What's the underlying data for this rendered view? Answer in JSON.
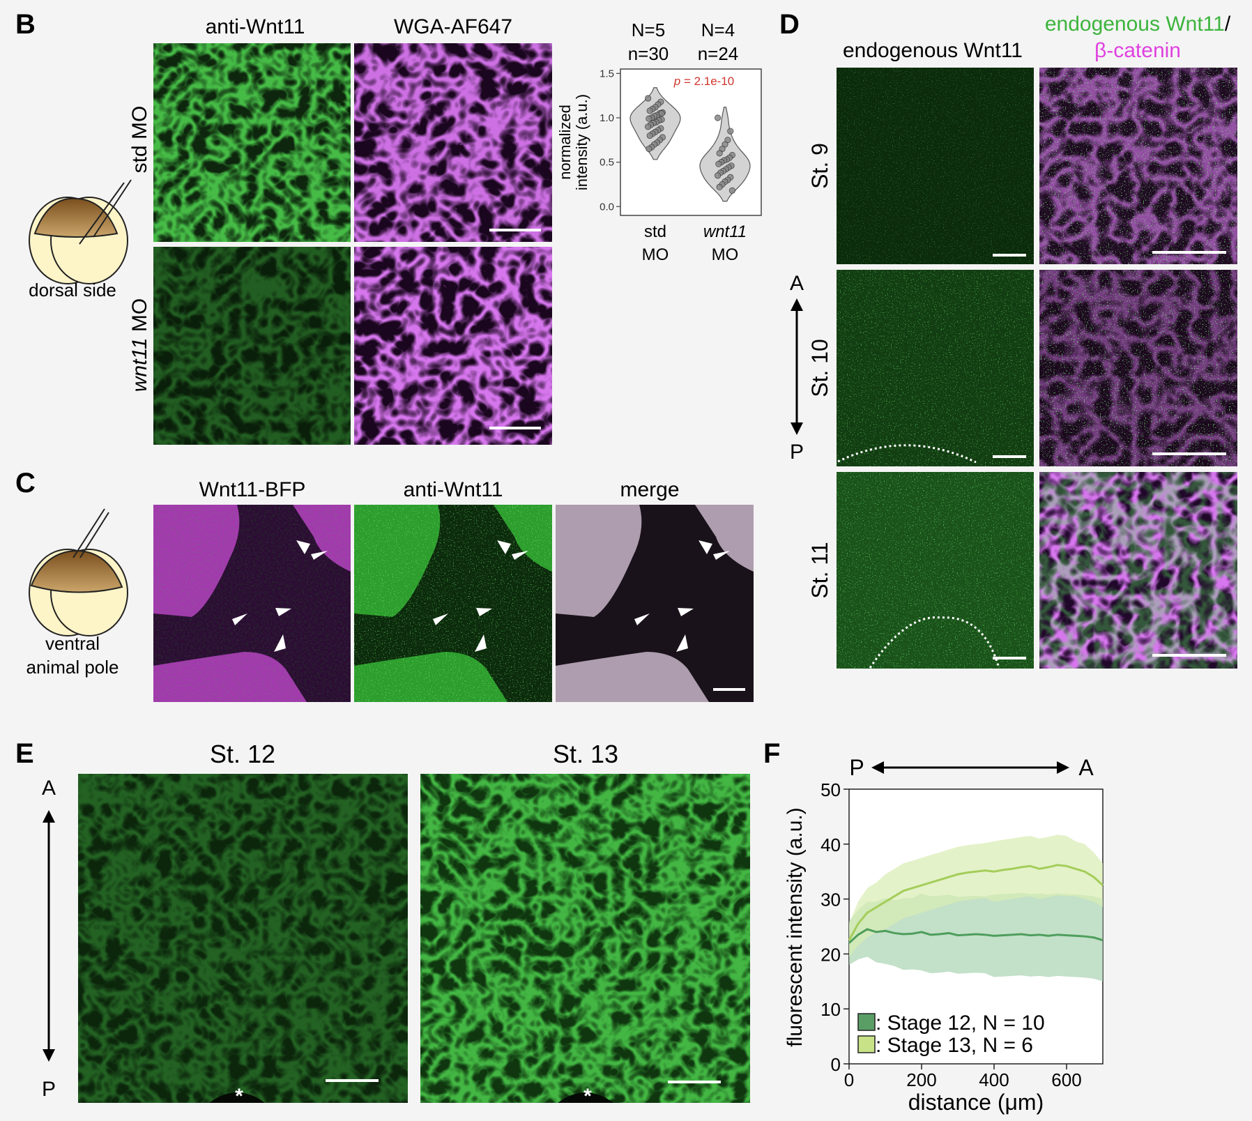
{
  "panels": {
    "B": {
      "letter": "B",
      "col_labels": [
        "anti-Wnt11",
        "WGA-AF647"
      ],
      "row_std": "std MO",
      "row_wnt11_italic": "wnt11",
      "row_wnt11_rest": " MO",
      "embryo_label": "dorsal side",
      "violin": {
        "groups": [
          {
            "N": "N=5",
            "n": "n=30",
            "label_line1": "std",
            "label_line2": "MO",
            "italic": false,
            "values": [
              1.22,
              1.18,
              1.15,
              1.12,
              1.1,
              1.08,
              1.06,
              1.05,
              1.03,
              1.02,
              1.0,
              0.99,
              0.98,
              0.97,
              0.95,
              0.94,
              0.92,
              0.9,
              0.88,
              0.86,
              0.84,
              0.82,
              0.8,
              0.78,
              0.75,
              0.72,
              0.7,
              0.67,
              0.65,
              1.05
            ]
          },
          {
            "N": "N=4",
            "n": "n=24",
            "label_line1": "wnt11",
            "label_line2": "MO",
            "italic": true,
            "values": [
              1.0,
              0.85,
              0.75,
              0.7,
              0.65,
              0.6,
              0.58,
              0.55,
              0.53,
              0.52,
              0.5,
              0.48,
              0.46,
              0.44,
              0.42,
              0.4,
              0.38,
              0.35,
              0.33,
              0.3,
              0.28,
              0.25,
              0.22,
              0.18
            ]
          }
        ],
        "ylabel_line1": "normalized",
        "ylabel_line2": "intensity (a.u.)",
        "yticks": [
          "0.0",
          "0.5",
          "1.0",
          "1.5"
        ],
        "ylim": [
          -0.1,
          1.55
        ],
        "p_label": "p",
        "p_value": " = 2.1e-10",
        "p_color": "#d0342c"
      }
    },
    "C": {
      "letter": "C",
      "col_labels": [
        "Wnt11-BFP",
        "anti-Wnt11",
        "merge"
      ],
      "embryo_line1": "ventral",
      "embryo_line2": "animal pole"
    },
    "D": {
      "letter": "D",
      "col1_label": "endogenous Wnt11",
      "col2_line1_green": "endogenous Wnt11",
      "col2_line1_slash": "/",
      "col2_line2": "β-catenin",
      "green": "#3cb43c",
      "magenta": "#e040e0",
      "rows": [
        "St. 9",
        "St. 10",
        "St. 11"
      ],
      "axis_top": "A",
      "axis_bottom": "P"
    },
    "E": {
      "letter": "E",
      "titles": [
        "St. 12",
        "St. 13"
      ],
      "axis_top": "A",
      "axis_bottom": "P",
      "asterisk": "*"
    },
    "F": {
      "letter": "F",
      "axis_left": "P",
      "axis_right": "A",
      "ylabel": "fluorescent intensity (a.u.)",
      "xlabel": "distance (μm)",
      "legend": [
        ": Stage 12, N = 10",
        ": Stage 13, N = 6"
      ]
    }
  },
  "chart_data": {
    "type": "line",
    "xlabel": "distance (μm)",
    "ylabel": "fluorescent intensity (a.u.)",
    "xlim": [
      0,
      700
    ],
    "ylim": [
      0,
      50
    ],
    "xticks": [
      0,
      200,
      400,
      600
    ],
    "yticks": [
      0,
      10,
      20,
      30,
      40,
      50
    ],
    "legend_position": "bottom-left",
    "x": [
      0,
      25,
      50,
      75,
      100,
      125,
      150,
      175,
      200,
      225,
      250,
      275,
      300,
      325,
      350,
      375,
      400,
      425,
      450,
      475,
      500,
      525,
      550,
      575,
      600,
      625,
      650,
      675,
      700
    ],
    "series": [
      {
        "name": "Stage 12, N = 10",
        "color": "#4e9e5c",
        "band_color": "#a9d3b2",
        "values": [
          22,
          23.5,
          24.5,
          24,
          24.2,
          23.8,
          23.6,
          23.7,
          24.0,
          23.5,
          23.6,
          23.8,
          23.4,
          23.5,
          23.6,
          23.5,
          23.3,
          23.4,
          23.5,
          23.6,
          23.4,
          23.5,
          23.3,
          23.5,
          23.4,
          23.3,
          23.2,
          23.0,
          22.5
        ],
        "sd": [
          4,
          4.5,
          5,
          5.5,
          6,
          6,
          6.5,
          6.5,
          7,
          7,
          7,
          7,
          7,
          7,
          7,
          7,
          7.5,
          7.5,
          7.5,
          7.5,
          7.5,
          7.5,
          7.5,
          7.5,
          7.5,
          7.5,
          7.5,
          7.5,
          7.5
        ]
      },
      {
        "name": "Stage 13, N = 6",
        "color": "#a4cd5a",
        "band_color": "#d9ecb2",
        "values": [
          22.5,
          25.5,
          27.5,
          28.5,
          29.5,
          30.5,
          31.5,
          32,
          32.5,
          33,
          33.5,
          34,
          34.5,
          34.8,
          35,
          35.2,
          35,
          35.3,
          35.5,
          35.8,
          36,
          35.5,
          35.8,
          36.2,
          36,
          35.5,
          35,
          34,
          32.5
        ],
        "sd": [
          3,
          4,
          4.5,
          4.5,
          5,
          5,
          5,
          5,
          5,
          5,
          5,
          5,
          5,
          5,
          5,
          5,
          5.5,
          5.5,
          5.5,
          5.5,
          5.5,
          5.5,
          5.5,
          5.5,
          5.5,
          5,
          5,
          4.5,
          4
        ]
      }
    ]
  }
}
